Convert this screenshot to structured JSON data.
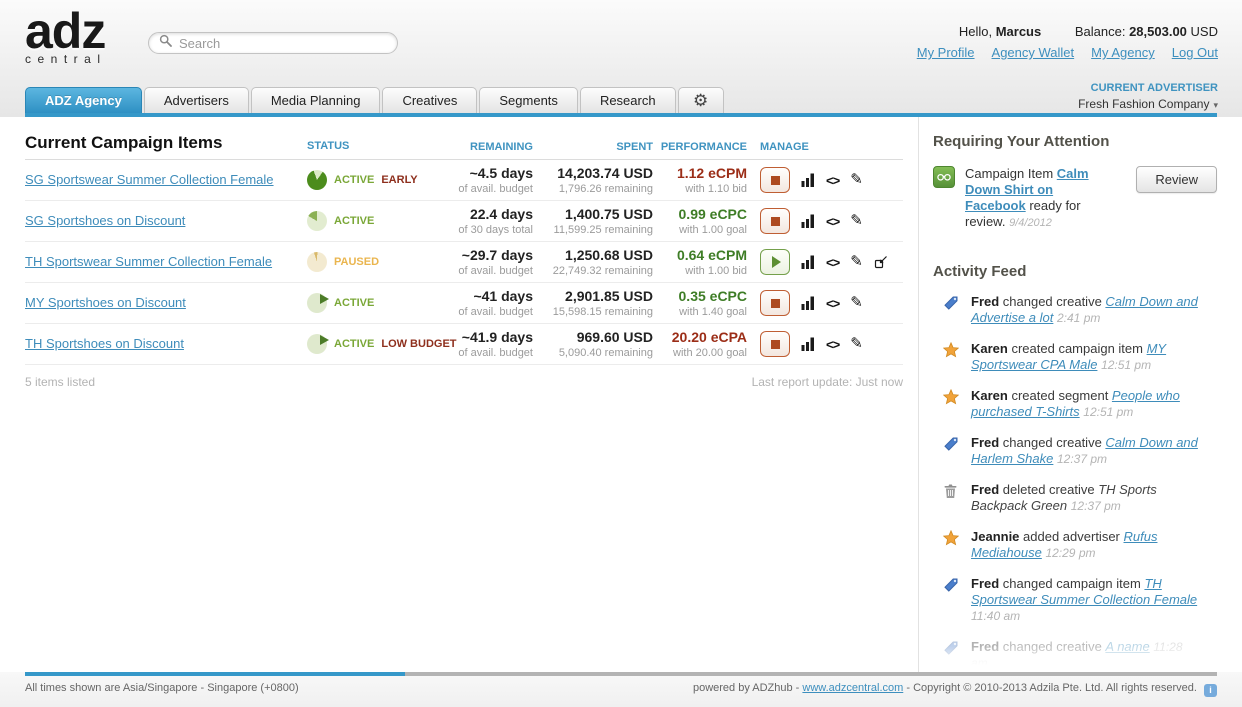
{
  "colors": {
    "accent_blue": "#3598c9",
    "link_blue": "#3e8cba",
    "green": "#7aa737",
    "dark_red": "#8e2f1d",
    "orange": "#eab54e"
  },
  "header": {
    "logo_main": "adz",
    "logo_sub": "central",
    "search_placeholder": "Search",
    "greeting_prefix": "Hello,",
    "greeting_name": "Marcus",
    "balance_label": "Balance:",
    "balance_amount": "28,503.00",
    "balance_currency": "USD",
    "links": [
      "My Profile",
      "Agency Wallet",
      "My Agency",
      "Log Out"
    ]
  },
  "tabs": [
    {
      "label": "ADZ Agency",
      "active": true
    },
    {
      "label": "Advertisers",
      "active": false
    },
    {
      "label": "Media Planning",
      "active": false
    },
    {
      "label": "Creatives",
      "active": false
    },
    {
      "label": "Segments",
      "active": false
    },
    {
      "label": "Research",
      "active": false
    }
  ],
  "advertiser": {
    "label": "CURRENT ADVERTISER",
    "value": "Fresh Fashion Company"
  },
  "campaigns": {
    "title": "Current Campaign Items",
    "columns": {
      "status": "STATUS",
      "remaining": "REMAINING",
      "spent": "SPENT",
      "performance": "PERFORMANCE",
      "manage": "MANAGE"
    },
    "rows": [
      {
        "name": "SG Sportswear Summer Collection Female",
        "status": {
          "icon": "pie-high",
          "label": "ACTIVE",
          "label_color": "green",
          "flag": "EARLY"
        },
        "remaining": {
          "value": "~4.5 days",
          "sub": "of avail. budget"
        },
        "spent": {
          "value": "14,203.74 USD",
          "sub": "1,796.26 remaining"
        },
        "performance": {
          "value": "1.12 eCPM",
          "sub": "with 1.10 bid",
          "tone": "red"
        },
        "manage": {
          "toggle": "stop",
          "icons": [
            "stats",
            "code",
            "edit"
          ]
        }
      },
      {
        "name": "SG Sportshoes on Discount",
        "status": {
          "icon": "pie-low",
          "label": "ACTIVE",
          "label_color": "green",
          "flag": ""
        },
        "remaining": {
          "value": "22.4 days",
          "sub": "of 30 days total"
        },
        "spent": {
          "value": "1,400.75 USD",
          "sub": "11,599.25 remaining"
        },
        "performance": {
          "value": "0.99 eCPC",
          "sub": "with 1.00 goal",
          "tone": "green"
        },
        "manage": {
          "toggle": "stop",
          "icons": [
            "stats",
            "code",
            "edit"
          ]
        }
      },
      {
        "name": "TH Sportswear Summer Collection Female",
        "status": {
          "icon": "pie-paused",
          "label": "PAUSED",
          "label_color": "orange",
          "flag": ""
        },
        "remaining": {
          "value": "~29.7 days",
          "sub": "of avail. budget"
        },
        "spent": {
          "value": "1,250.68 USD",
          "sub": "22,749.32 remaining"
        },
        "performance": {
          "value": "0.64 eCPM",
          "sub": "with 1.00 bid",
          "tone": "green"
        },
        "manage": {
          "toggle": "play",
          "icons": [
            "stats",
            "code",
            "edit",
            "move"
          ]
        }
      },
      {
        "name": "MY Sportshoes on Discount",
        "status": {
          "icon": "pie-play",
          "label": "ACTIVE",
          "label_color": "green",
          "flag": ""
        },
        "remaining": {
          "value": "~41 days",
          "sub": "of avail. budget"
        },
        "spent": {
          "value": "2,901.85 USD",
          "sub": "15,598.15 remaining"
        },
        "performance": {
          "value": "0.35 eCPC",
          "sub": "with 1.40 goal",
          "tone": "green"
        },
        "manage": {
          "toggle": "stop",
          "icons": [
            "stats",
            "code",
            "edit"
          ]
        }
      },
      {
        "name": "TH Sportshoes on Discount",
        "status": {
          "icon": "pie-play",
          "label": "ACTIVE",
          "label_color": "green",
          "flag": "LOW BUDGET"
        },
        "remaining": {
          "value": "~41.9 days",
          "sub": "of avail. budget"
        },
        "spent": {
          "value": "969.60 USD",
          "sub": "5,090.40 remaining"
        },
        "performance": {
          "value": "20.20 eCPA",
          "sub": "with 20.00 goal",
          "tone": "red"
        },
        "manage": {
          "toggle": "stop",
          "icons": [
            "stats",
            "code",
            "edit"
          ]
        }
      }
    ],
    "items_count": "5 items listed",
    "last_update": "Last report update: Just now"
  },
  "attention": {
    "heading": "Requiring Your Attention",
    "item": {
      "icon": "glasses",
      "prefix": "Campaign Item",
      "link": "Calm Down Shirt on Facebook",
      "suffix": "ready for review.",
      "date": "9/4/2012",
      "button": "Review"
    }
  },
  "activity_feed": {
    "heading": "Activity Feed",
    "items": [
      {
        "icon": "tag",
        "actor": "Fred",
        "verb": "changed creative",
        "target": "Calm Down and Advertise a lot",
        "link": true,
        "time": "2:41 pm",
        "faded": false
      },
      {
        "icon": "star",
        "actor": "Karen",
        "verb": "created campaign item",
        "target": "MY Sportswear CPA Male",
        "link": true,
        "time": "12:51 pm",
        "faded": false
      },
      {
        "icon": "star",
        "actor": "Karen",
        "verb": "created segment",
        "target": "People who purchased T-Shirts",
        "link": true,
        "time": "12:51 pm",
        "faded": false
      },
      {
        "icon": "tag",
        "actor": "Fred",
        "verb": "changed creative",
        "target": "Calm Down and Harlem Shake",
        "link": true,
        "time": "12:37 pm",
        "faded": false
      },
      {
        "icon": "trash",
        "actor": "Fred",
        "verb": "deleted creative",
        "target": "TH Sports Backpack Green",
        "link": false,
        "time": "12:37 pm",
        "faded": false
      },
      {
        "icon": "star",
        "actor": "Jeannie",
        "verb": "added advertiser",
        "target": "Rufus Mediahouse",
        "link": true,
        "time": "12:29 pm",
        "faded": false
      },
      {
        "icon": "tag",
        "actor": "Fred",
        "verb": "changed campaign item",
        "target": "TH Sportswear Summer Collection Female",
        "link": true,
        "time": "11:40 am",
        "faded": false
      },
      {
        "icon": "tag",
        "actor": "Fred",
        "verb": "changed creative",
        "target": "A name",
        "link": true,
        "time": "11:28 am",
        "faded": true
      }
    ]
  },
  "page_footer": {
    "timezone": "All times shown are Asia/Singapore - Singapore (+0800)",
    "powered_prefix": "powered by ADZhub -",
    "powered_link": "www.adzcentral.com",
    "copyright": "- Copyright © 2010-2013 Adzila Pte. Ltd. All rights reserved."
  }
}
